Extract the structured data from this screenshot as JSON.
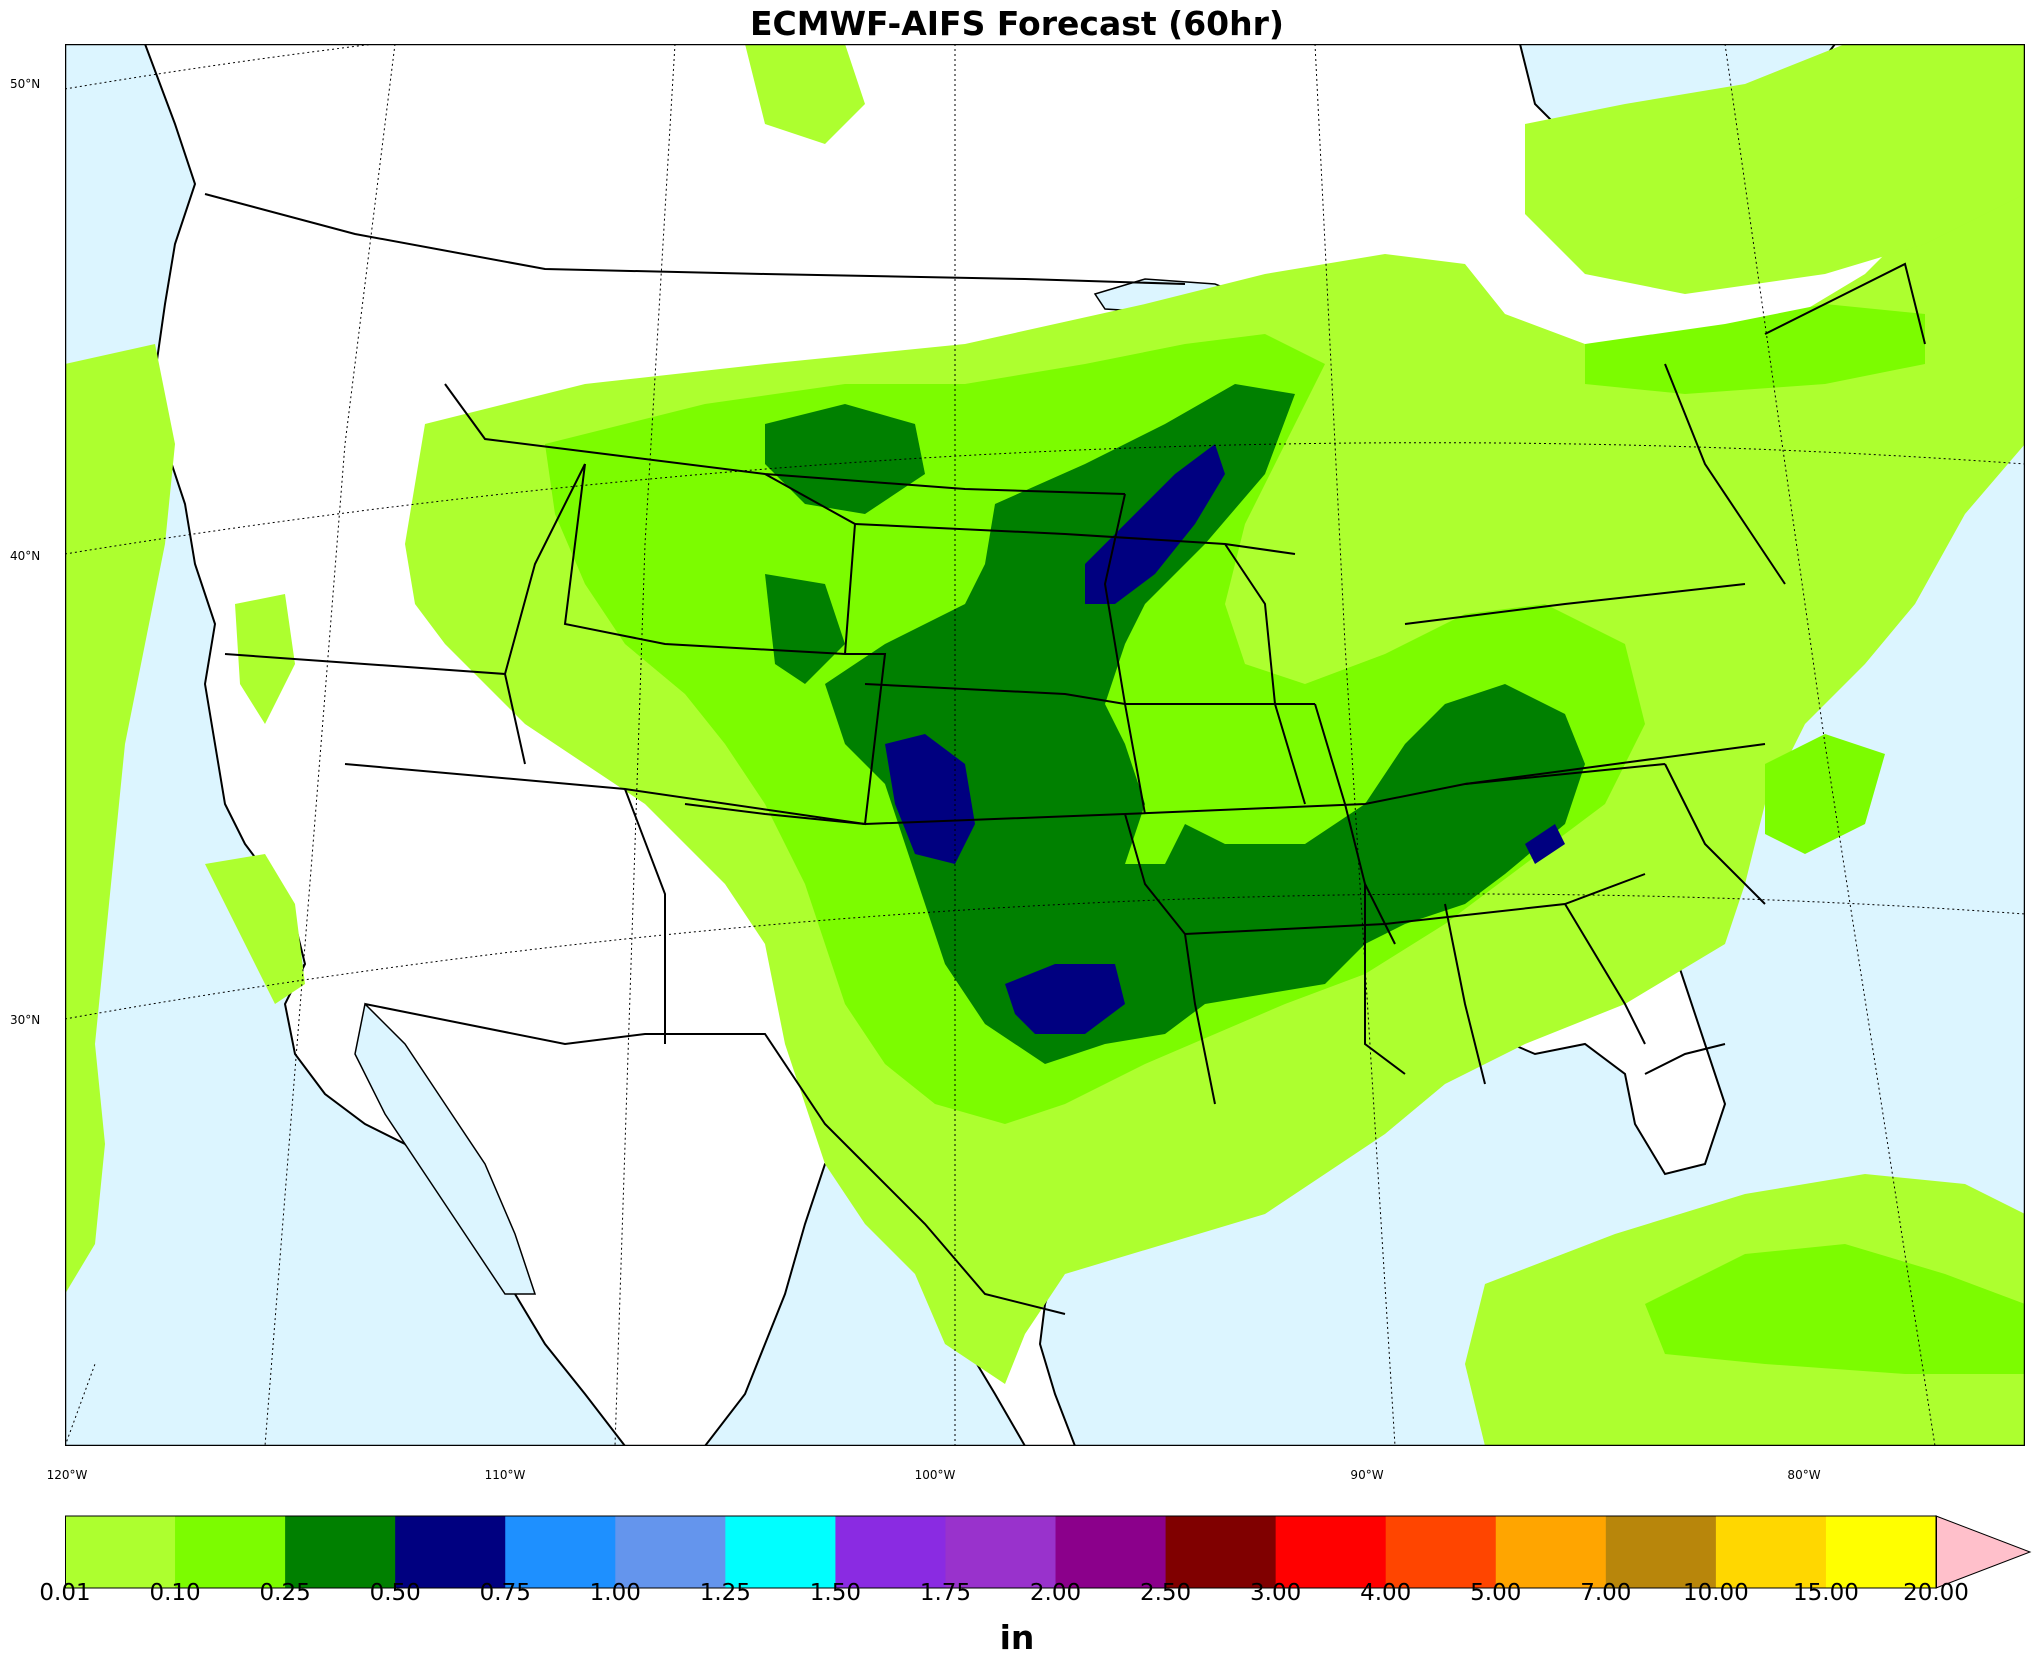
{
  "title": "ECMWF-AIFS Forecast (60hr)",
  "unit": "in",
  "lat_labels": [
    "50°N",
    "40°N",
    "30°N"
  ],
  "lon_labels": [
    "120°W",
    "110°W",
    "100°W",
    "90°W",
    "80°W"
  ],
  "colorbar": {
    "levels": [
      "0.01",
      "0.10",
      "0.25",
      "0.50",
      "0.75",
      "1.00",
      "1.25",
      "1.50",
      "1.75",
      "2.00",
      "2.50",
      "3.00",
      "4.00",
      "5.00",
      "7.00",
      "10.00",
      "15.00",
      "20.00"
    ],
    "colors": [
      "#adff2f",
      "#7cfc00",
      "#008000",
      "#000080",
      "#1e90ff",
      "#6495ed",
      "#00ffff",
      "#8a2be2",
      "#9932cc",
      "#8b008b",
      "#800000",
      "#ff0000",
      "#ff4500",
      "#ffa500",
      "#b8860b",
      "#ffd700",
      "#ffff00"
    ],
    "extend_color": "#ffc0cb"
  },
  "map_colors": {
    "ocean": "#dcf5ff",
    "land": "#ffffff",
    "borders": "#000000"
  }
}
